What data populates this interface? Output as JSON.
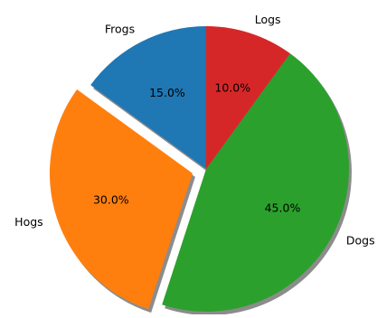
{
  "chart_data": {
    "type": "pie",
    "categories": [
      "Frogs",
      "Hogs",
      "Dogs",
      "Logs"
    ],
    "values": [
      15,
      30,
      45,
      10
    ],
    "percent_labels": [
      "15.0%",
      "30.0%",
      "45.0%",
      "10.0%"
    ],
    "colors": [
      "#1f77b4",
      "#ff7f0e",
      "#2ca02c",
      "#d62728"
    ],
    "explode": [
      0,
      0.1,
      0,
      0
    ],
    "shadow": true,
    "start_angle_deg": 90,
    "direction": "counterclockwise",
    "title": "",
    "legend": "none"
  }
}
